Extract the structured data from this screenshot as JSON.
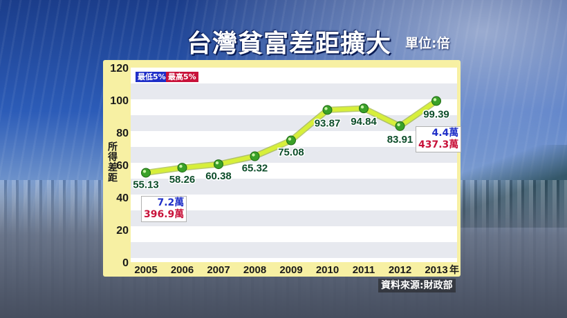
{
  "title": "台灣貧富差距擴大",
  "unit": "單位:倍",
  "source": "資料來源:財政部",
  "legend": {
    "low": "最低5%",
    "high": "最高5%"
  },
  "callouts": {
    "first": {
      "low": "7.2萬",
      "high": "396.9萬"
    },
    "last": {
      "low": "4.4萬",
      "high": "437.3萬"
    }
  },
  "chart_data": {
    "type": "line",
    "x": [
      "2005",
      "2006",
      "2007",
      "2008",
      "2009",
      "2010",
      "2011",
      "2012",
      "2013"
    ],
    "x_suffix": "年",
    "series": [
      {
        "values": [
          55.13,
          58.26,
          60.38,
          65.32,
          75.08,
          93.87,
          94.84,
          83.91,
          99.39
        ],
        "labels": [
          "55.13",
          "58.26",
          "60.38",
          "65.32",
          "75.08",
          "93.87",
          "94.84",
          "83.91",
          "99.39"
        ]
      }
    ],
    "ylabel": "所得差距",
    "ylim": [
      0,
      120
    ],
    "yticks": [
      "0",
      "20",
      "40",
      "60",
      "80",
      "100",
      "120"
    ],
    "colors": {
      "line": "#d7ef3a",
      "point": "#3aa128",
      "label": "#0d4d2a"
    }
  }
}
